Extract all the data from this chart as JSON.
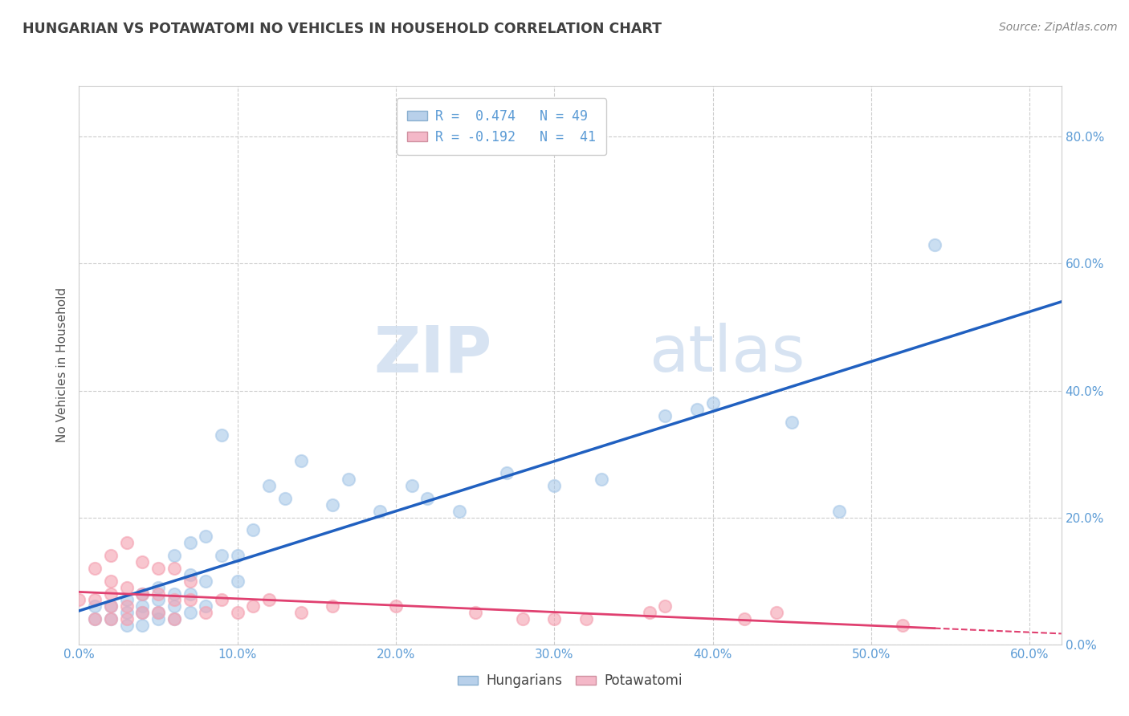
{
  "title": "HUNGARIAN VS POTAWATOMI NO VEHICLES IN HOUSEHOLD CORRELATION CHART",
  "source": "Source: ZipAtlas.com",
  "xlim": [
    0.0,
    0.62
  ],
  "ylim": [
    0.0,
    0.88
  ],
  "legend_xlabel": "Hungarians",
  "legend_ylabel": "Potawatomi",
  "r_hungarian": 0.474,
  "n_hungarian": 49,
  "r_potawatomi": -0.192,
  "n_potawatomi": 41,
  "blue_color": "#a8c8e8",
  "pink_color": "#f4a0b0",
  "blue_line_color": "#2060c0",
  "pink_line_color": "#e04070",
  "watermark_zip": "ZIP",
  "watermark_atlas": "atlas",
  "background_color": "#ffffff",
  "hungarian_x": [
    0.01,
    0.01,
    0.02,
    0.02,
    0.03,
    0.03,
    0.03,
    0.04,
    0.04,
    0.04,
    0.04,
    0.05,
    0.05,
    0.05,
    0.05,
    0.06,
    0.06,
    0.06,
    0.06,
    0.07,
    0.07,
    0.07,
    0.07,
    0.08,
    0.08,
    0.08,
    0.09,
    0.09,
    0.1,
    0.1,
    0.11,
    0.12,
    0.13,
    0.14,
    0.16,
    0.17,
    0.19,
    0.21,
    0.22,
    0.24,
    0.27,
    0.3,
    0.33,
    0.37,
    0.39,
    0.4,
    0.45,
    0.48,
    0.54
  ],
  "hungarian_y": [
    0.04,
    0.06,
    0.04,
    0.06,
    0.03,
    0.05,
    0.07,
    0.03,
    0.05,
    0.06,
    0.08,
    0.04,
    0.05,
    0.07,
    0.09,
    0.04,
    0.06,
    0.08,
    0.14,
    0.05,
    0.08,
    0.11,
    0.16,
    0.06,
    0.1,
    0.17,
    0.14,
    0.33,
    0.1,
    0.14,
    0.18,
    0.25,
    0.23,
    0.29,
    0.22,
    0.26,
    0.21,
    0.25,
    0.23,
    0.21,
    0.27,
    0.25,
    0.26,
    0.36,
    0.37,
    0.38,
    0.35,
    0.21,
    0.63
  ],
  "potawatomi_x": [
    0.0,
    0.01,
    0.01,
    0.01,
    0.02,
    0.02,
    0.02,
    0.02,
    0.02,
    0.03,
    0.03,
    0.03,
    0.03,
    0.04,
    0.04,
    0.04,
    0.05,
    0.05,
    0.05,
    0.06,
    0.06,
    0.06,
    0.07,
    0.07,
    0.08,
    0.09,
    0.1,
    0.11,
    0.12,
    0.14,
    0.16,
    0.2,
    0.25,
    0.28,
    0.3,
    0.32,
    0.36,
    0.37,
    0.42,
    0.44,
    0.52
  ],
  "potawatomi_y": [
    0.07,
    0.04,
    0.07,
    0.12,
    0.04,
    0.06,
    0.08,
    0.1,
    0.14,
    0.04,
    0.06,
    0.09,
    0.16,
    0.05,
    0.08,
    0.13,
    0.05,
    0.08,
    0.12,
    0.04,
    0.07,
    0.12,
    0.07,
    0.1,
    0.05,
    0.07,
    0.05,
    0.06,
    0.07,
    0.05,
    0.06,
    0.06,
    0.05,
    0.04,
    0.04,
    0.04,
    0.05,
    0.06,
    0.04,
    0.05,
    0.03
  ]
}
